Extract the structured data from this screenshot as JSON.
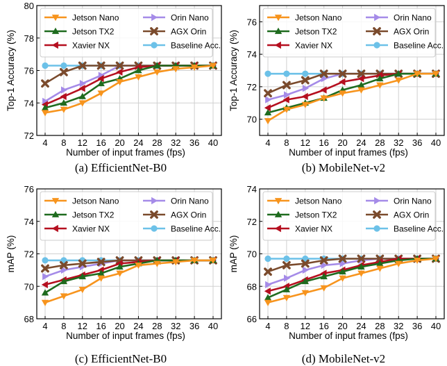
{
  "colors": {
    "Jetson Nano": "#f7941d",
    "Jetson TX2": "#1e6b1e",
    "Xavier NX": "#b50f1f",
    "Orin Nano": "#a58be8",
    "AGX Orin": "#7a4a2c",
    "Baseline Acc.": "#6cc1e8"
  },
  "chart_data": [
    {
      "type": "line",
      "caption": "(a) EfficientNet-B0",
      "xlabel": "Number of input frames (fps)",
      "ylabel": "Top-1 Accuracy (%)",
      "x": [
        4,
        8,
        12,
        16,
        20,
        24,
        28,
        32,
        36,
        40
      ],
      "xticks": [
        "4",
        "8",
        "12",
        "16",
        "20",
        "24",
        "28",
        "32",
        "36",
        "40"
      ],
      "ylim": [
        72,
        80
      ],
      "yticks": [
        "72",
        "74",
        "76",
        "78",
        "80"
      ],
      "grid": true,
      "legend": "top",
      "series": [
        {
          "name": "Jetson Nano",
          "marker": "tri-down",
          "values": [
            73.4,
            73.6,
            74.0,
            74.6,
            75.3,
            75.6,
            75.9,
            76.1,
            76.2,
            76.3
          ]
        },
        {
          "name": "Orin Nano",
          "marker": "tri-right",
          "values": [
            74.1,
            74.8,
            75.2,
            75.7,
            76.3,
            76.3,
            76.3,
            76.3,
            76.3,
            76.3
          ]
        },
        {
          "name": "Jetson TX2",
          "marker": "tri-up",
          "values": [
            73.7,
            74.0,
            74.4,
            75.2,
            75.5,
            76.0,
            76.3,
            76.3,
            76.3,
            76.3
          ]
        },
        {
          "name": "AGX Orin",
          "marker": "x",
          "values": [
            75.2,
            75.9,
            76.3,
            76.3,
            76.3,
            76.3,
            76.3,
            76.3,
            76.3,
            76.3
          ]
        },
        {
          "name": "Xavier NX",
          "marker": "tri-left",
          "values": [
            73.9,
            74.4,
            74.9,
            75.5,
            75.9,
            76.2,
            76.3,
            76.3,
            76.3,
            76.3
          ]
        },
        {
          "name": "Baseline Acc.",
          "marker": "circle",
          "values": [
            76.3,
            76.3,
            76.3,
            76.3,
            76.3,
            76.3,
            76.3,
            76.3,
            76.3,
            76.3
          ]
        }
      ]
    },
    {
      "type": "line",
      "caption": "(b) MobileNet-v2",
      "xlabel": "Number of input frames (fps)",
      "ylabel": "Top-1 Accuracy (%)",
      "x": [
        4,
        8,
        12,
        16,
        20,
        24,
        28,
        32,
        36,
        40
      ],
      "xticks": [
        "4",
        "8",
        "12",
        "16",
        "20",
        "24",
        "28",
        "32",
        "36",
        "40"
      ],
      "ylim": [
        69,
        77
      ],
      "yticks": [
        "70",
        "72",
        "74",
        "76"
      ],
      "grid": true,
      "legend": "top",
      "series": [
        {
          "name": "Jetson Nano",
          "marker": "tri-down",
          "values": [
            69.9,
            70.6,
            70.9,
            71.3,
            71.6,
            71.8,
            72.1,
            72.4,
            72.8,
            72.8
          ]
        },
        {
          "name": "Orin Nano",
          "marker": "tri-right",
          "values": [
            71.2,
            71.5,
            71.9,
            72.5,
            72.8,
            72.8,
            72.8,
            72.8,
            72.8,
            72.8
          ]
        },
        {
          "name": "Jetson TX2",
          "marker": "tri-up",
          "values": [
            70.4,
            70.7,
            71.0,
            71.3,
            71.8,
            72.1,
            72.5,
            72.8,
            72.8,
            72.8
          ]
        },
        {
          "name": "AGX Orin",
          "marker": "x",
          "values": [
            71.6,
            72.1,
            72.4,
            72.8,
            72.8,
            72.8,
            72.8,
            72.8,
            72.8,
            72.8
          ]
        },
        {
          "name": "Xavier NX",
          "marker": "tri-left",
          "values": [
            70.7,
            71.2,
            71.4,
            71.8,
            72.3,
            72.5,
            72.7,
            72.8,
            72.8,
            72.8
          ]
        },
        {
          "name": "Baseline Acc.",
          "marker": "circle",
          "values": [
            72.8,
            72.8,
            72.8,
            72.8,
            72.8,
            72.8,
            72.8,
            72.8,
            72.8,
            72.8
          ]
        }
      ]
    },
    {
      "type": "line",
      "caption": "(c) EfficientNet-B0",
      "xlabel": "Number of input frames (fps)",
      "ylabel": "mAP (%)",
      "x": [
        4,
        8,
        12,
        16,
        20,
        24,
        28,
        32,
        36,
        40
      ],
      "xticks": [
        "4",
        "8",
        "12",
        "16",
        "20",
        "24",
        "28",
        "32",
        "36",
        "40"
      ],
      "ylim": [
        68,
        76
      ],
      "yticks": [
        "68",
        "70",
        "72",
        "74",
        "76"
      ],
      "grid": true,
      "legend": "top",
      "series": [
        {
          "name": "Jetson Nano",
          "marker": "tri-down",
          "values": [
            69.0,
            69.4,
            69.8,
            70.5,
            70.8,
            71.3,
            71.4,
            71.5,
            71.6,
            71.6
          ]
        },
        {
          "name": "Orin Nano",
          "marker": "tri-right",
          "values": [
            70.6,
            71.0,
            71.2,
            71.4,
            71.6,
            71.6,
            71.6,
            71.6,
            71.6,
            71.6
          ]
        },
        {
          "name": "Jetson TX2",
          "marker": "tri-up",
          "values": [
            69.6,
            70.3,
            70.6,
            70.8,
            71.2,
            71.4,
            71.6,
            71.6,
            71.6,
            71.6
          ]
        },
        {
          "name": "AGX Orin",
          "marker": "x",
          "values": [
            71.1,
            71.3,
            71.4,
            71.5,
            71.6,
            71.6,
            71.6,
            71.6,
            71.6,
            71.6
          ]
        },
        {
          "name": "Xavier NX",
          "marker": "tri-left",
          "values": [
            70.1,
            70.4,
            70.7,
            71.0,
            71.4,
            71.5,
            71.6,
            71.6,
            71.6,
            71.6
          ]
        },
        {
          "name": "Baseline Acc.",
          "marker": "circle",
          "values": [
            71.6,
            71.6,
            71.6,
            71.6,
            71.6,
            71.6,
            71.6,
            71.6,
            71.6,
            71.6
          ]
        }
      ]
    },
    {
      "type": "line",
      "caption": "(d) MobileNet-v2",
      "xlabel": "Number of input frames (fps)",
      "ylabel": "mAP (%)",
      "x": [
        4,
        8,
        12,
        16,
        20,
        24,
        28,
        32,
        36,
        40
      ],
      "xticks": [
        "4",
        "8",
        "12",
        "16",
        "20",
        "24",
        "28",
        "32",
        "36",
        "40"
      ],
      "ylim": [
        66,
        74
      ],
      "yticks": [
        "66",
        "68",
        "70",
        "72",
        "74"
      ],
      "grid": true,
      "legend": "top",
      "series": [
        {
          "name": "Jetson Nano",
          "marker": "tri-down",
          "values": [
            67.0,
            67.3,
            67.6,
            67.9,
            68.5,
            68.8,
            69.1,
            69.4,
            69.6,
            69.7
          ]
        },
        {
          "name": "Orin Nano",
          "marker": "tri-right",
          "values": [
            68.1,
            68.5,
            69.0,
            69.3,
            69.4,
            69.6,
            69.7,
            69.7,
            69.7,
            69.7
          ]
        },
        {
          "name": "Jetson TX2",
          "marker": "tri-up",
          "values": [
            67.3,
            67.8,
            68.3,
            68.6,
            68.9,
            69.2,
            69.4,
            69.6,
            69.7,
            69.7
          ]
        },
        {
          "name": "AGX Orin",
          "marker": "x",
          "values": [
            68.9,
            69.3,
            69.4,
            69.6,
            69.7,
            69.7,
            69.7,
            69.7,
            69.7,
            69.7
          ]
        },
        {
          "name": "Xavier NX",
          "marker": "tri-left",
          "values": [
            67.7,
            68.0,
            68.4,
            68.8,
            69.0,
            69.3,
            69.5,
            69.7,
            69.7,
            69.7
          ]
        },
        {
          "name": "Baseline Acc.",
          "marker": "circle",
          "values": [
            69.7,
            69.7,
            69.7,
            69.7,
            69.7,
            69.7,
            69.7,
            69.7,
            69.7,
            69.7
          ]
        }
      ]
    }
  ]
}
